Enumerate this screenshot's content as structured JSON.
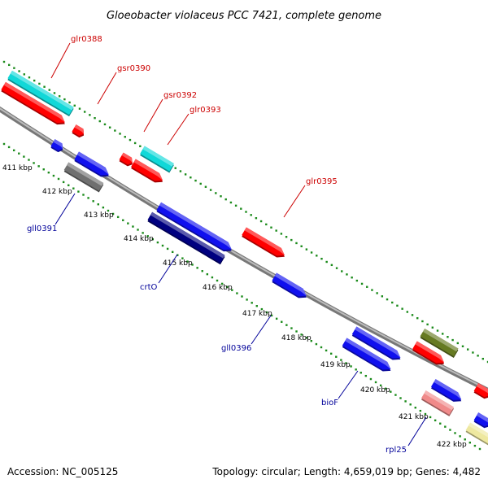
{
  "title": "Gloeobacter violaceus PCC 7421, complete genome",
  "footer": {
    "accession": "Accession: NC_005125",
    "summary": "Topology: circular; Length: 4,659,019 bp; Genes: 4,482"
  },
  "kbp_labels": [
    "411 kbp",
    "412 kbp",
    "413 kbp",
    "414 kbp",
    "415 kbp",
    "416 kbp",
    "417 kbp",
    "418 kbp",
    "419 kbp",
    "420 kbp",
    "421 kbp",
    "422 kbp"
  ],
  "gene_labels": {
    "glr0388": "glr0388",
    "gsr0390": "gsr0390",
    "gsr0392": "gsr0392",
    "glr0393": "glr0393",
    "glr0395": "glr0395",
    "gll0391": "gll0391",
    "crtO": "crtO",
    "gll0396": "gll0396",
    "bioF": "bioF",
    "rpl25": "rpl25"
  },
  "colors": {
    "backbone": "#999999",
    "forward_label": "#cc0000",
    "reverse_label": "#000099",
    "ticks": "#1a8a1a",
    "red": "#ff0000",
    "cyan": "#11d8d8",
    "blue": "#1010ee",
    "navy": "#000080",
    "gray": "#707070",
    "olive": "#667a22",
    "pink": "#f08a8a",
    "khaki": "#eee8a0"
  }
}
